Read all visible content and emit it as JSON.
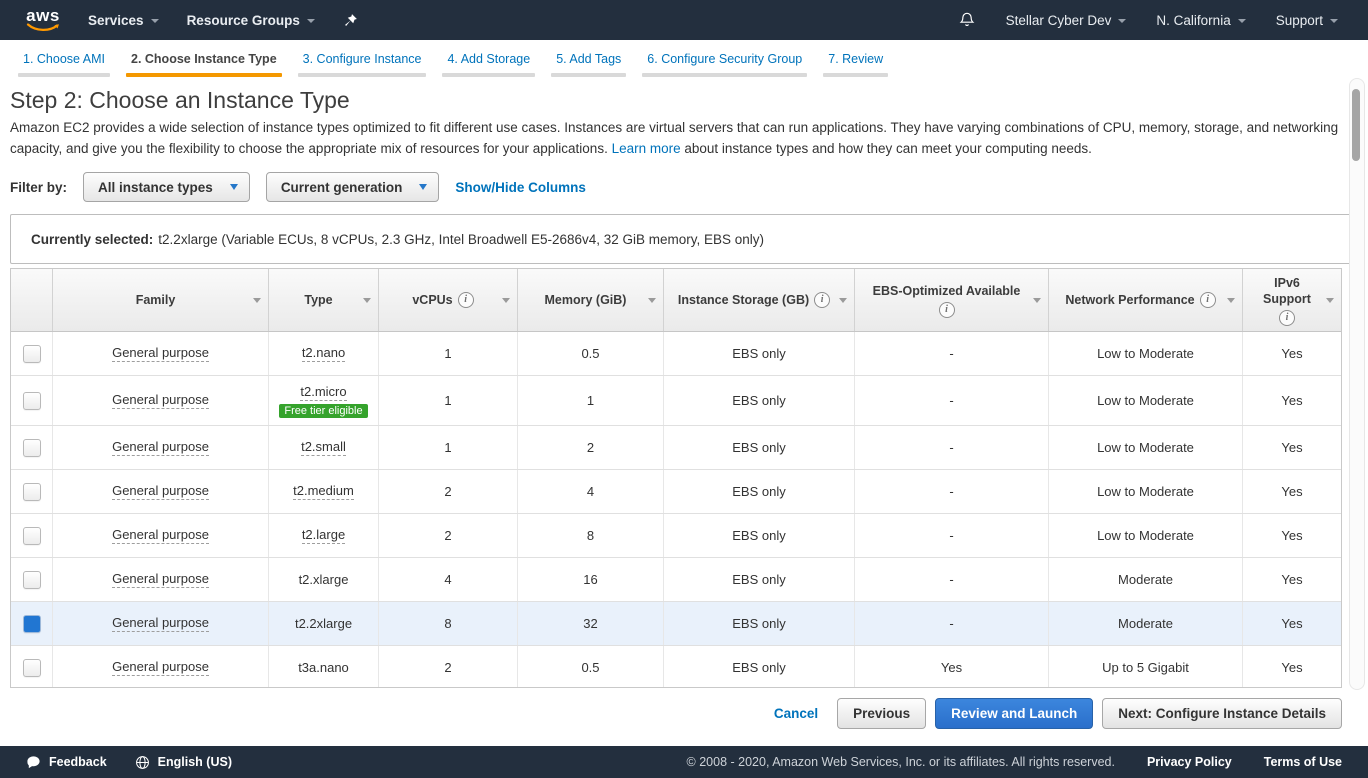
{
  "topnav": {
    "logo": "aws",
    "services": "Services",
    "resource_groups": "Resource Groups",
    "account": "Stellar Cyber Dev",
    "region": "N. California",
    "support": "Support"
  },
  "wizard": {
    "active_index": 1,
    "tabs": [
      "1. Choose AMI",
      "2. Choose Instance Type",
      "3. Configure Instance",
      "4. Add Storage",
      "5. Add Tags",
      "6. Configure Security Group",
      "7. Review"
    ]
  },
  "page": {
    "title": "Step 2: Choose an Instance Type",
    "description_before": "Amazon EC2 provides a wide selection of instance types optimized to fit different use cases. Instances are virtual servers that can run applications. They have varying combinations of CPU, memory, storage, and networking capacity, and give you the flexibility to choose the appropriate mix of resources for your applications. ",
    "learn_more": "Learn more",
    "description_after": " about instance types and how they can meet your computing needs."
  },
  "filter": {
    "label": "Filter by:",
    "dropdowns": [
      "All instance types",
      "Current generation"
    ],
    "showhide": "Show/Hide Columns"
  },
  "selection": {
    "label": "Currently selected:",
    "value": "t2.2xlarge (Variable ECUs, 8 vCPUs, 2.3 GHz, Intel Broadwell E5-2686v4, 32 GiB memory, EBS only)"
  },
  "table": {
    "headers": [
      {
        "label": "",
        "info": null
      },
      {
        "label": "Family",
        "info": null
      },
      {
        "label": "Type",
        "info": null
      },
      {
        "label": "vCPUs",
        "info": "inline"
      },
      {
        "label": "Memory (GiB)",
        "info": null
      },
      {
        "label": "Instance Storage (GB)",
        "info": "inline"
      },
      {
        "label": "EBS-Optimized Available",
        "info": "below"
      },
      {
        "label": "Network Performance",
        "info": "inline"
      },
      {
        "label": "IPv6 Support",
        "info": "below"
      }
    ],
    "rows": [
      {
        "family": "General purpose",
        "type": "t2.nano",
        "type_dotted": true,
        "badge": null,
        "vcpus": "1",
        "memory": "0.5",
        "storage": "EBS only",
        "ebs_optimized": "-",
        "network": "Low to Moderate",
        "ipv6": "Yes",
        "selected": false
      },
      {
        "family": "General purpose",
        "type": "t2.micro",
        "type_dotted": true,
        "badge": "Free tier eligible",
        "vcpus": "1",
        "memory": "1",
        "storage": "EBS only",
        "ebs_optimized": "-",
        "network": "Low to Moderate",
        "ipv6": "Yes",
        "selected": false
      },
      {
        "family": "General purpose",
        "type": "t2.small",
        "type_dotted": true,
        "badge": null,
        "vcpus": "1",
        "memory": "2",
        "storage": "EBS only",
        "ebs_optimized": "-",
        "network": "Low to Moderate",
        "ipv6": "Yes",
        "selected": false
      },
      {
        "family": "General purpose",
        "type": "t2.medium",
        "type_dotted": true,
        "badge": null,
        "vcpus": "2",
        "memory": "4",
        "storage": "EBS only",
        "ebs_optimized": "-",
        "network": "Low to Moderate",
        "ipv6": "Yes",
        "selected": false
      },
      {
        "family": "General purpose",
        "type": "t2.large",
        "type_dotted": true,
        "badge": null,
        "vcpus": "2",
        "memory": "8",
        "storage": "EBS only",
        "ebs_optimized": "-",
        "network": "Low to Moderate",
        "ipv6": "Yes",
        "selected": false
      },
      {
        "family": "General purpose",
        "type": "t2.xlarge",
        "type_dotted": false,
        "badge": null,
        "vcpus": "4",
        "memory": "16",
        "storage": "EBS only",
        "ebs_optimized": "-",
        "network": "Moderate",
        "ipv6": "Yes",
        "selected": false
      },
      {
        "family": "General purpose",
        "type": "t2.2xlarge",
        "type_dotted": false,
        "badge": null,
        "vcpus": "8",
        "memory": "32",
        "storage": "EBS only",
        "ebs_optimized": "-",
        "network": "Moderate",
        "ipv6": "Yes",
        "selected": true
      },
      {
        "family": "General purpose",
        "type": "t3a.nano",
        "type_dotted": false,
        "badge": null,
        "vcpus": "2",
        "memory": "0.5",
        "storage": "EBS only",
        "ebs_optimized": "Yes",
        "network": "Up to 5 Gigabit",
        "ipv6": "Yes",
        "selected": false
      }
    ]
  },
  "actions": {
    "cancel": "Cancel",
    "previous": "Previous",
    "review_and_launch": "Review and Launch",
    "next": "Next: Configure Instance Details"
  },
  "footer": {
    "feedback": "Feedback",
    "language": "English (US)",
    "copyright": "© 2008 - 2020, Amazon Web Services, Inc. or its affiliates. All rights reserved.",
    "privacy": "Privacy Policy",
    "terms": "Terms of Use"
  },
  "colors": {
    "nav_dark": "#232f3e",
    "accent_orange": "#f49800",
    "link_blue": "#0073bb",
    "primary_button_blue": "#2e77d0",
    "selected_row": "#e9f1fb",
    "selected_checkbox": "#2176d2",
    "badge_green": "#35a32c"
  }
}
